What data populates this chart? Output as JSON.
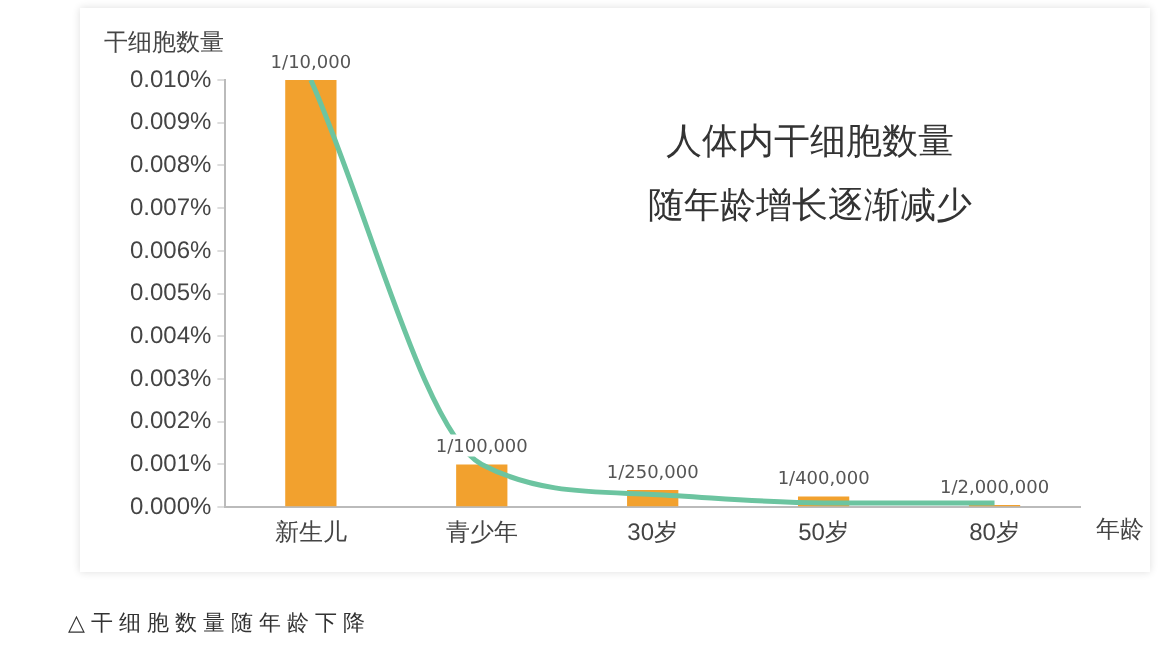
{
  "chart_data": {
    "type": "bar",
    "title": "人体内干细胞数量",
    "subtitle": "随年龄增长逐渐减少",
    "ylabel": "干细胞数量",
    "xlabel": "年龄",
    "categories": [
      "新生儿",
      "青少年",
      "30岁",
      "50岁",
      "80岁"
    ],
    "series": [
      {
        "color": "#f2a12e",
        "values": [
          0.01,
          0.001,
          0.0004,
          0.00025,
          5e-05
        ],
        "value_labels": [
          "1/10,000",
          "1/100,000",
          "1/250,000",
          "1/400,000",
          "1/2,000,000"
        ]
      },
      {
        "type": "line",
        "color": "#6cc4a0",
        "values": [
          0.01,
          0.001,
          0.0003,
          0.0001,
          0.0001
        ]
      }
    ],
    "ylim": [
      0,
      0.01
    ],
    "yticks": [
      {
        "value": 0,
        "label": "0.000%"
      },
      {
        "value": 0.001,
        "label": "0.001%"
      },
      {
        "value": 0.002,
        "label": "0.002%"
      },
      {
        "value": 0.003,
        "label": "0.003%"
      },
      {
        "value": 0.004,
        "label": "0.004%"
      },
      {
        "value": 0.005,
        "label": "0.005%"
      },
      {
        "value": 0.006,
        "label": "0.006%"
      },
      {
        "value": 0.007,
        "label": "0.007%"
      },
      {
        "value": 0.008,
        "label": "0.008%"
      },
      {
        "value": 0.009,
        "label": "0.009%"
      },
      {
        "value": 0.01,
        "label": "0.010%"
      }
    ],
    "grid": false,
    "legend": false,
    "marker": "none",
    "annotations": [
      "△干细胞数量随年龄下降"
    ]
  }
}
